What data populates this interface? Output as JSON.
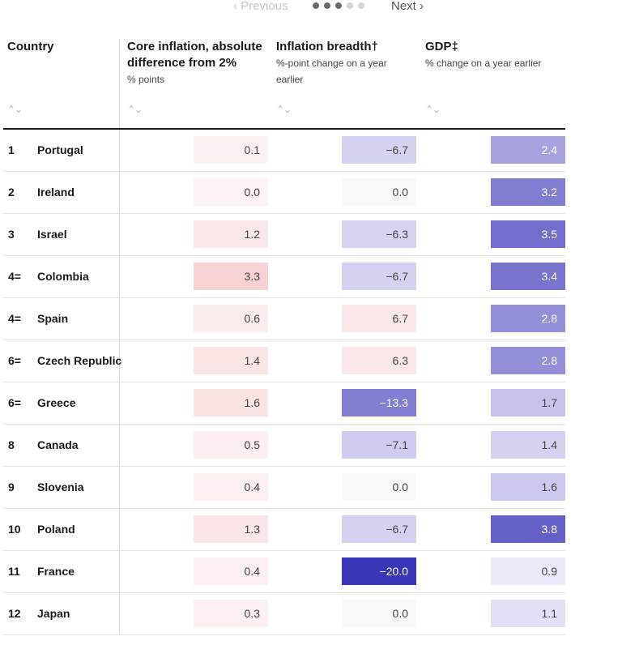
{
  "pager": {
    "prev_label": "‹ Previous",
    "next_label": "Next ›",
    "pages": 5,
    "current": 3
  },
  "table": {
    "headers": [
      {
        "title": "Country",
        "subtitle": ""
      },
      {
        "title": "Core inflation, absolute difference from 2%",
        "subtitle": "% points"
      },
      {
        "title": "Inflation breadth†",
        "subtitle": "%-point change on a year earlier"
      },
      {
        "title": "GDP‡",
        "subtitle": "% change on a year earlier"
      }
    ],
    "sort_icon": "sort-icon",
    "rows": [
      {
        "rank": "1",
        "country": "Portugal",
        "core": "0.1",
        "breadth": "−6.7",
        "gdp": "2.4"
      },
      {
        "rank": "2",
        "country": "Ireland",
        "core": "0.0",
        "breadth": "0.0",
        "gdp": "3.2"
      },
      {
        "rank": "3",
        "country": "Israel",
        "core": "1.2",
        "breadth": "−6.3",
        "gdp": "3.5"
      },
      {
        "rank": "4=",
        "country": "Colombia",
        "core": "3.3",
        "breadth": "−6.7",
        "gdp": "3.4"
      },
      {
        "rank": "4=",
        "country": "Spain",
        "core": "0.6",
        "breadth": "6.7",
        "gdp": "2.8"
      },
      {
        "rank": "6=",
        "country": "Czech Republic",
        "core": "1.4",
        "breadth": "6.3",
        "gdp": "2.8"
      },
      {
        "rank": "6=",
        "country": "Greece",
        "core": "1.6",
        "breadth": "−13.3",
        "gdp": "1.7"
      },
      {
        "rank": "8",
        "country": "Canada",
        "core": "0.5",
        "breadth": "−7.1",
        "gdp": "1.4"
      },
      {
        "rank": "9",
        "country": "Slovenia",
        "core": "0.4",
        "breadth": "0.0",
        "gdp": "1.6"
      },
      {
        "rank": "10",
        "country": "Poland",
        "core": "1.3",
        "breadth": "−6.7",
        "gdp": "3.8"
      },
      {
        "rank": "11",
        "country": "France",
        "core": "0.4",
        "breadth": "−20.0",
        "gdp": "0.9"
      },
      {
        "rank": "12",
        "country": "Japan",
        "core": "0.3",
        "breadth": "0.0",
        "gdp": "1.1"
      }
    ]
  }
}
